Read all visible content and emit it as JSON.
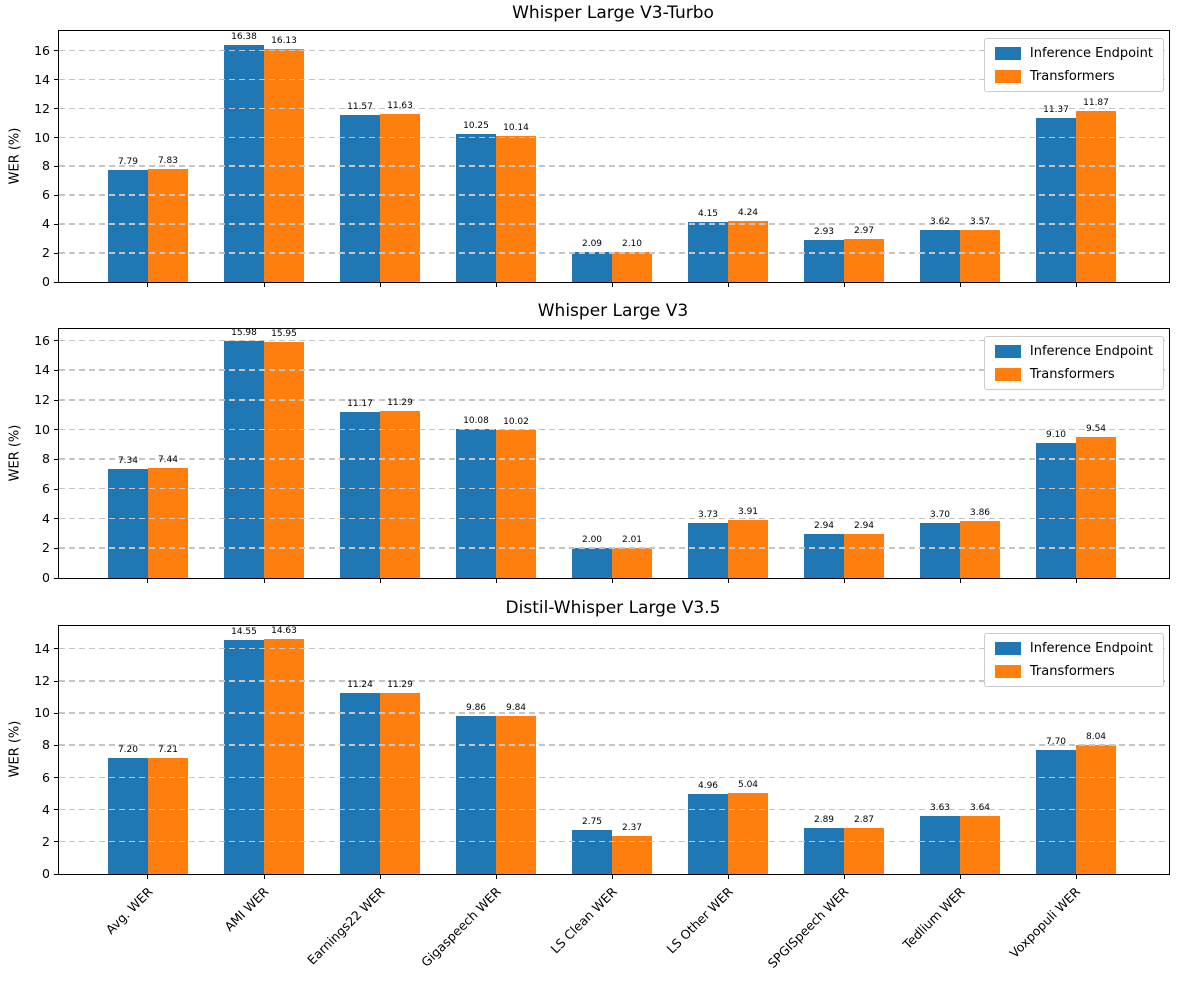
{
  "legend": {
    "entries": [
      {
        "label": "Inference Endpoint",
        "color": "#1f77b4"
      },
      {
        "label": "Transformers",
        "color": "#ff7f0e"
      }
    ],
    "position": "upper right"
  },
  "colors": {
    "inference_endpoint": "#1f77b4",
    "transformers": "#ff7f0e",
    "grid": "#c5c5c5",
    "spine": "#000000"
  },
  "chart_data": [
    {
      "type": "bar",
      "title": "Whisper Large V3-Turbo",
      "ylabel": "WER (%)",
      "xlabel": "",
      "grid": true,
      "legend_position": "upper right",
      "show_xticklabels": false,
      "ylim": [
        0,
        17.38
      ],
      "yticks": [
        0,
        2,
        4,
        6,
        8,
        10,
        12,
        14,
        16
      ],
      "categories": [
        "Avg. WER",
        "AMI WER",
        "Earnings22 WER",
        "Gigaspeech WER",
        "LS Clean WER",
        "LS Other WER",
        "SPGISpeech WER",
        "Tedlium WER",
        "Voxpopuli WER"
      ],
      "series": [
        {
          "name": "Inference Endpoint",
          "color": "#1f77b4",
          "values": [
            7.79,
            16.38,
            11.57,
            10.25,
            2.09,
            4.15,
            2.93,
            3.62,
            11.37
          ]
        },
        {
          "name": "Transformers",
          "color": "#ff7f0e",
          "values": [
            7.83,
            16.13,
            11.63,
            10.14,
            2.1,
            4.24,
            2.97,
            3.57,
            11.87
          ]
        }
      ]
    },
    {
      "type": "bar",
      "title": "Whisper Large V3",
      "ylabel": "WER (%)",
      "xlabel": "",
      "grid": true,
      "legend_position": "upper right",
      "show_xticklabels": false,
      "ylim": [
        0,
        16.8
      ],
      "yticks": [
        0,
        2,
        4,
        6,
        8,
        10,
        12,
        14,
        16
      ],
      "categories": [
        "Avg. WER",
        "AMI WER",
        "Earnings22 WER",
        "Gigaspeech WER",
        "LS Clean WER",
        "LS Other WER",
        "SPGISpeech WER",
        "Tedlium WER",
        "Voxpopuli WER"
      ],
      "series": [
        {
          "name": "Inference Endpoint",
          "color": "#1f77b4",
          "values": [
            7.34,
            15.98,
            11.17,
            10.08,
            2.0,
            3.73,
            2.94,
            3.7,
            9.1
          ]
        },
        {
          "name": "Transformers",
          "color": "#ff7f0e",
          "values": [
            7.44,
            15.95,
            11.29,
            10.02,
            2.01,
            3.91,
            2.94,
            3.86,
            9.54
          ]
        }
      ]
    },
    {
      "type": "bar",
      "title": "Distil-Whisper Large V3.5",
      "ylabel": "WER (%)",
      "xlabel": "",
      "grid": true,
      "legend_position": "upper right",
      "show_xticklabels": true,
      "ylim": [
        0,
        15.43
      ],
      "yticks": [
        0,
        2,
        4,
        6,
        8,
        10,
        12,
        14
      ],
      "categories": [
        "Avg. WER",
        "AMI WER",
        "Earnings22 WER",
        "Gigaspeech WER",
        "LS Clean WER",
        "LS Other WER",
        "SPGISpeech WER",
        "Tedlium WER",
        "Voxpopuli WER"
      ],
      "series": [
        {
          "name": "Inference Endpoint",
          "color": "#1f77b4",
          "values": [
            7.2,
            14.55,
            11.24,
            9.86,
            2.75,
            4.96,
            2.89,
            3.63,
            7.7
          ]
        },
        {
          "name": "Transformers",
          "color": "#ff7f0e",
          "values": [
            7.21,
            14.63,
            11.29,
            9.84,
            2.37,
            5.04,
            2.87,
            3.64,
            8.04
          ]
        }
      ]
    }
  ]
}
